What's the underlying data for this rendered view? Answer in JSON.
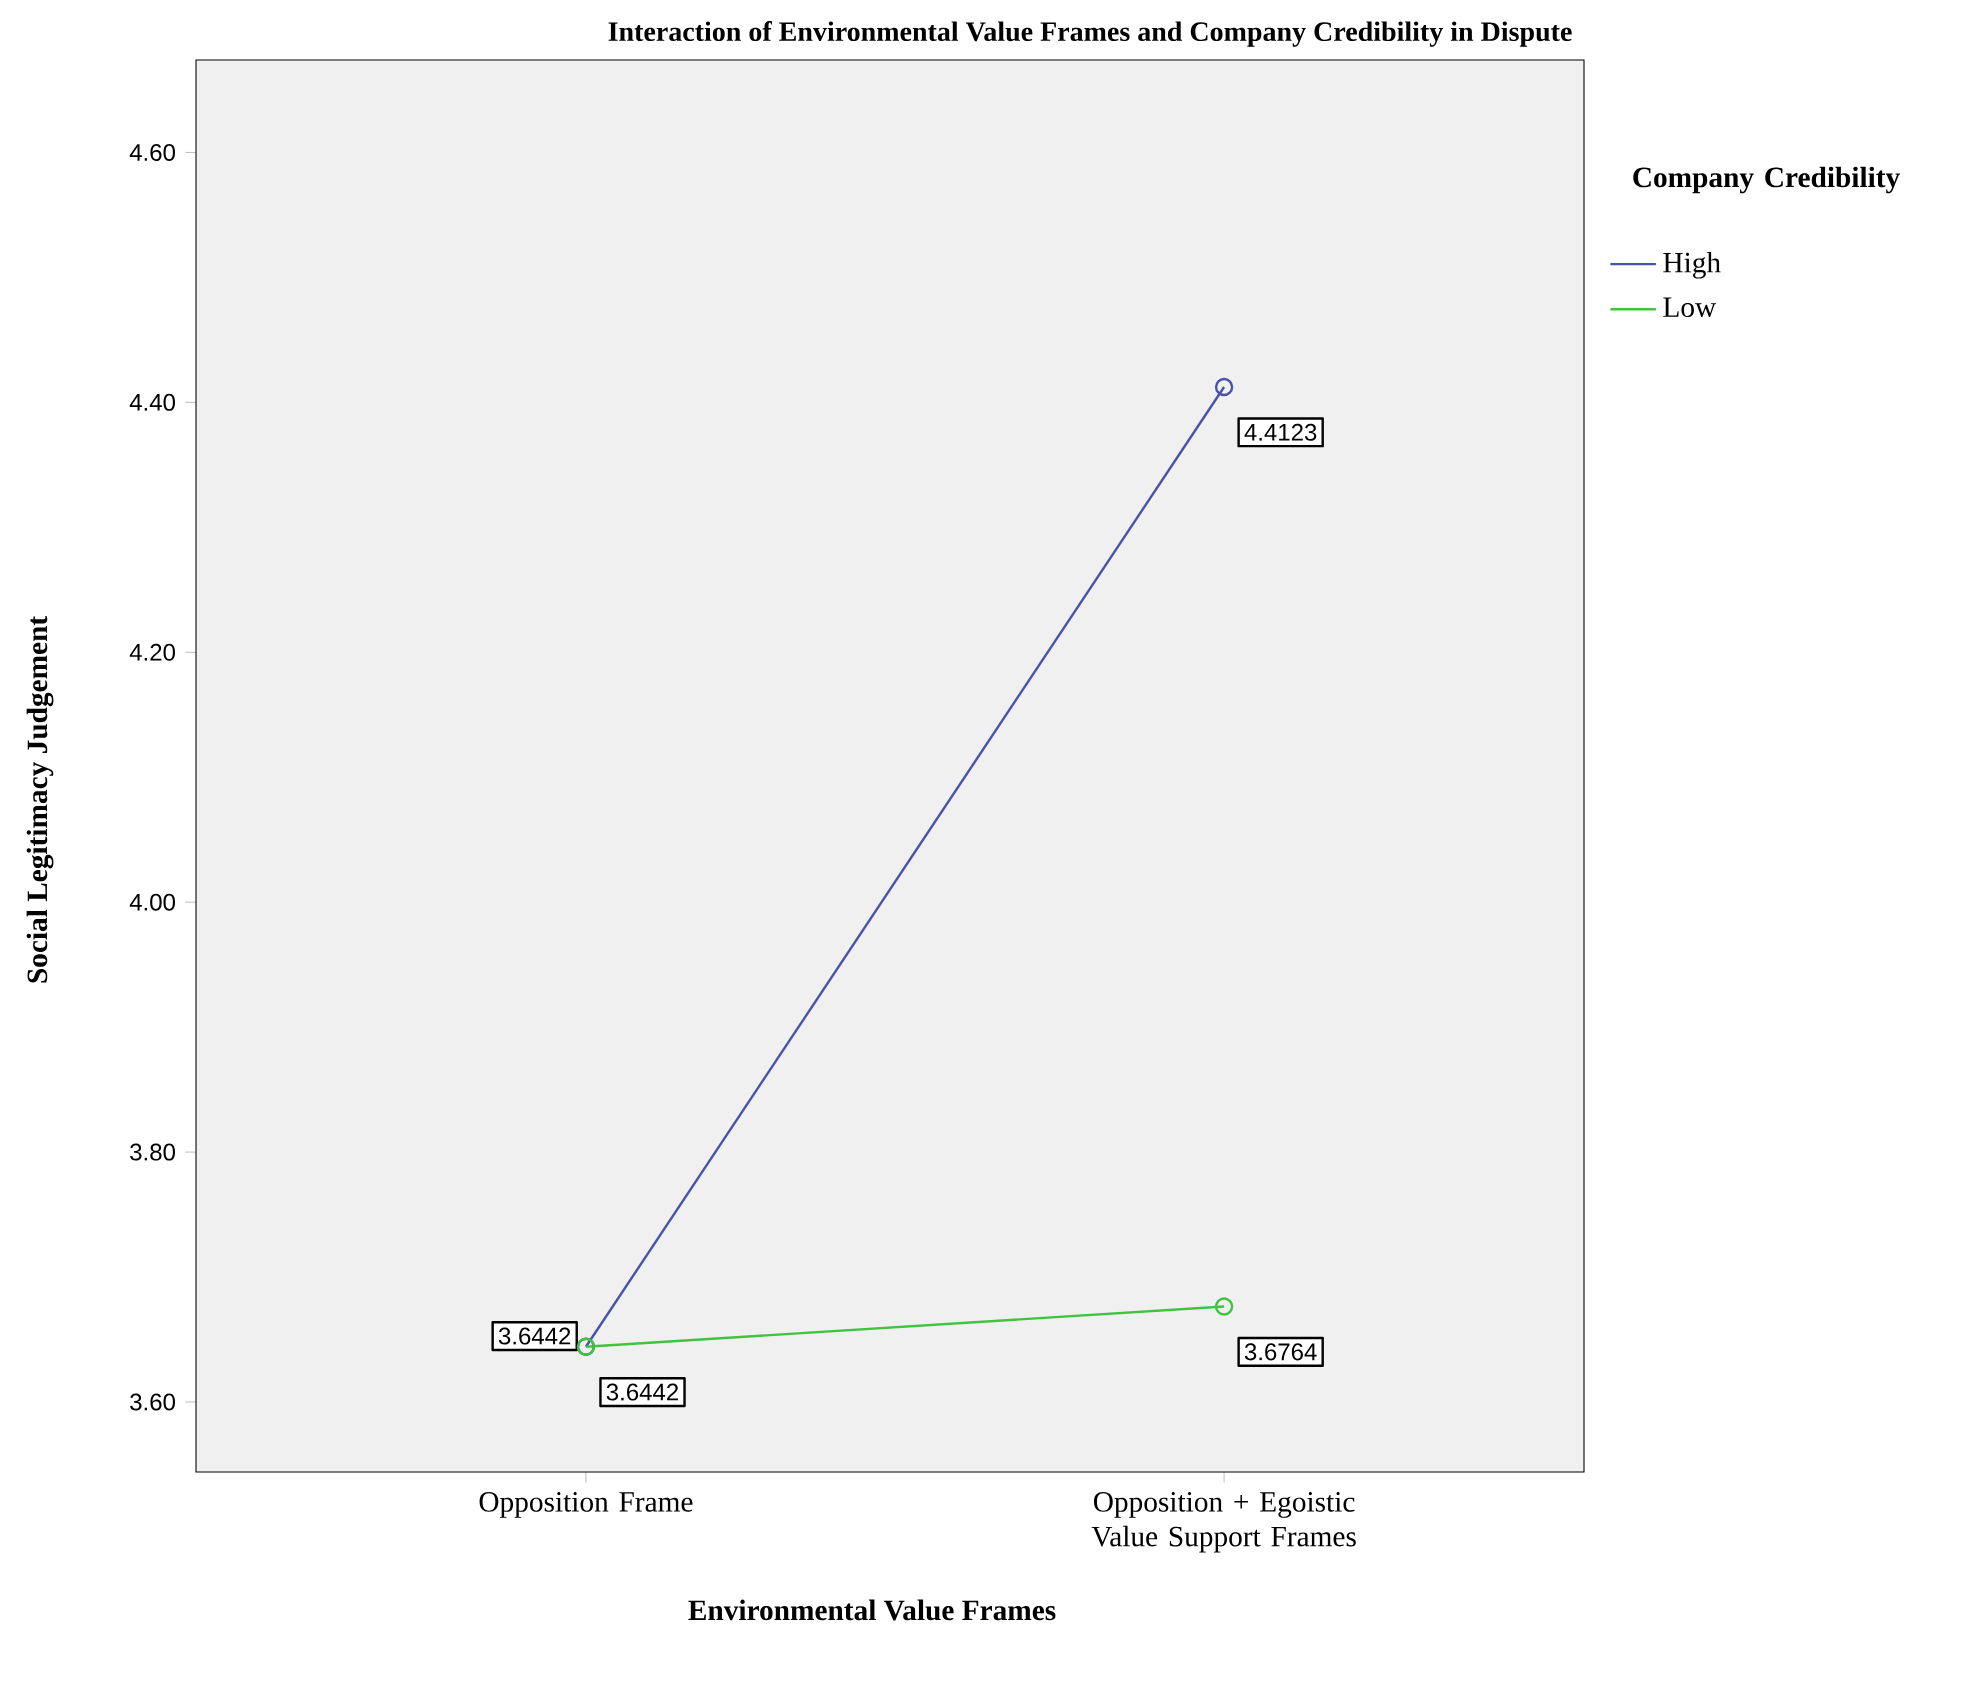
{
  "chart_data": {
    "type": "line",
    "title": "Interaction of Environmental Value Frames and Company Credibility in Dispute",
    "xlabel": "Environmental Value Frames",
    "ylabel": "Social Legitimacy Judgement",
    "legend_title": "Company Credibility",
    "categories": [
      "Opposition Frame",
      "Opposition + Egoistic Value Support Frames"
    ],
    "series": [
      {
        "name": "High",
        "color": "#4653a8",
        "values": [
          3.6442,
          4.4123
        ]
      },
      {
        "name": "Low",
        "color": "#3ec43e",
        "values": [
          3.6442,
          3.6764
        ]
      }
    ],
    "ylim": [
      3.544,
      4.674
    ],
    "yticks": [
      {
        "value": 3.6,
        "label": "3.60"
      },
      {
        "value": 3.8,
        "label": "3.80"
      },
      {
        "value": 4.0,
        "label": "4.00"
      },
      {
        "value": 4.2,
        "label": "4.20"
      },
      {
        "value": 4.4,
        "label": "4.40"
      },
      {
        "value": 4.6,
        "label": "4.60"
      }
    ],
    "data_labels": true,
    "marker": "circle",
    "line_style": "solid",
    "legend": "right"
  }
}
